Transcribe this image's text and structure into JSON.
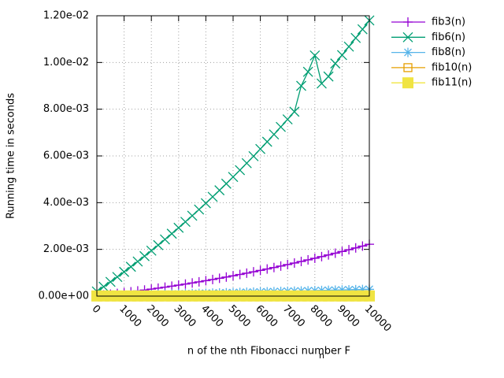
{
  "chart_data": {
    "type": "line",
    "xlabel": "n of the nth Fibonacci number F",
    "xlabel_subscript": "n",
    "ylabel": "Running time in seconds",
    "x": [
      0,
      250,
      500,
      750,
      1000,
      1250,
      1500,
      1750,
      2000,
      2250,
      2500,
      2750,
      3000,
      3250,
      3500,
      3750,
      4000,
      4250,
      4500,
      4750,
      5000,
      5250,
      5500,
      5750,
      6000,
      6250,
      6500,
      6750,
      7000,
      7250,
      7500,
      7750,
      8000,
      8250,
      8500,
      8750,
      9000,
      9250,
      9500,
      9750,
      10000
    ],
    "xlim": [
      0,
      10000
    ],
    "xticks": [
      0,
      1000,
      2000,
      3000,
      4000,
      5000,
      6000,
      7000,
      8000,
      9000,
      10000
    ],
    "ylim": [
      0,
      0.012
    ],
    "yticks": [
      {
        "value": 0,
        "label": "0.00e+00"
      },
      {
        "value": 0.002,
        "label": "2.00e-03"
      },
      {
        "value": 0.004,
        "label": "4.00e-03"
      },
      {
        "value": 0.006,
        "label": "6.00e-03"
      },
      {
        "value": 0.008,
        "label": "8.00e-03"
      },
      {
        "value": 0.01,
        "label": "1.00e-02"
      },
      {
        "value": 0.012,
        "label": "1.20e-02"
      }
    ],
    "grid": true,
    "legend": "outside-right-top",
    "series": [
      {
        "name": "fib3(n)",
        "color": "#9400d3",
        "marker": "plus",
        "values": [
          2e-05,
          5.06e-05,
          8.25e-05,
          0.0001156,
          0.00015,
          0.0001856,
          0.0002225,
          0.0002606,
          0.0003,
          0.0003406,
          0.0003825,
          0.0004256,
          0.00047,
          0.0005156,
          0.0005625,
          0.0006106,
          0.00066,
          0.0007106,
          0.0007625,
          0.0008156,
          0.00087,
          0.0009256,
          0.0009825,
          0.0010406,
          0.0011,
          0.0011606,
          0.0012225,
          0.0012856,
          0.00135,
          0.0014156,
          0.0014825,
          0.0015506,
          0.00162,
          0.0016906,
          0.0017625,
          0.0018356,
          0.00191,
          0.0019856,
          0.0020625,
          0.0021406,
          0.00222
        ]
      },
      {
        "name": "fib6(n)",
        "color": "#009e73",
        "marker": "cross",
        "values": [
          0.0002,
          0.000402,
          0.000609,
          0.00082,
          0.001036,
          0.001256,
          0.001481,
          0.00171,
          0.001944,
          0.002182,
          0.002425,
          0.002672,
          0.002924,
          0.00318,
          0.003441,
          0.003706,
          0.003976,
          0.00425,
          0.004529,
          0.004812,
          0.0051,
          0.005392,
          0.005689,
          0.00599,
          0.006296,
          0.006606,
          0.006921,
          0.00724,
          0.007564,
          0.007892,
          0.009,
          0.0096,
          0.0103,
          0.0091,
          0.0094,
          0.009956,
          0.010316,
          0.01068,
          0.011049,
          0.011422,
          0.0118
        ]
      },
      {
        "name": "fib8(n)",
        "color": "#56b4e9",
        "marker": "star",
        "values": [
          1e-05,
          1.7e-05,
          2.4e-05,
          3.1e-05,
          3.8e-05,
          4.5e-05,
          5.2e-05,
          5.9e-05,
          6.6e-05,
          7.3e-05,
          8e-05,
          8.7e-05,
          9.4e-05,
          0.000101,
          0.000108,
          0.000115,
          0.000122,
          0.000129,
          0.000136,
          0.000143,
          0.00015,
          0.000157,
          0.000164,
          0.000171,
          0.000178,
          0.000185,
          0.000192,
          0.000199,
          0.000206,
          0.000213,
          0.00022,
          0.000227,
          0.000234,
          0.000241,
          0.000248,
          0.000255,
          0.000262,
          0.000269,
          0.000276,
          0.000283,
          0.00029
        ]
      },
      {
        "name": "fib10(n)",
        "color": "#e69f00",
        "marker": "square",
        "values": [
          2e-05,
          2.1e-05,
          2.2e-05,
          2.2e-05,
          2.3e-05,
          2.4e-05,
          2.5e-05,
          2.5e-05,
          2.6e-05,
          2.7e-05,
          2.8e-05,
          2.8e-05,
          2.9e-05,
          3e-05,
          3.1e-05,
          3.1e-05,
          3.2e-05,
          3.3e-05,
          3.4e-05,
          3.4e-05,
          3.5e-05,
          3.6e-05,
          3.7e-05,
          3.7e-05,
          3.8e-05,
          3.9e-05,
          4e-05,
          4e-05,
          4.1e-05,
          4.2e-05,
          4.3e-05,
          4.3e-05,
          4.4e-05,
          4.5e-05,
          4.6e-05,
          4.6e-05,
          4.7e-05,
          4.8e-05,
          4.9e-05,
          4.9e-05,
          5e-05
        ]
      },
      {
        "name": "fib11(n)",
        "color": "#f0e442",
        "marker": "filled-square",
        "values": [
          5e-06,
          5e-06,
          5e-06,
          5e-06,
          5e-06,
          5e-06,
          5e-06,
          5e-06,
          5e-06,
          5e-06,
          5e-06,
          5e-06,
          5e-06,
          5e-06,
          5e-06,
          5e-06,
          5e-06,
          5e-06,
          5e-06,
          5e-06,
          5e-06,
          5e-06,
          5e-06,
          5e-06,
          5e-06,
          5e-06,
          5e-06,
          5e-06,
          5e-06,
          5e-06,
          5e-06,
          5e-06,
          5e-06,
          5e-06,
          5e-06,
          5e-06,
          5e-06,
          5e-06,
          5e-06,
          5e-06,
          5e-06
        ]
      }
    ]
  }
}
